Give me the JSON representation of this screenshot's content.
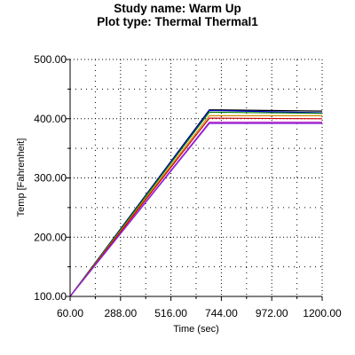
{
  "title_lines": [
    "Study name: Warm Up",
    "Plot type: Thermal Thermal1"
  ],
  "chart_data": {
    "type": "line",
    "title": "Study name: Warm Up\nPlot type: Thermal Thermal1",
    "xlabel": "Time (sec)",
    "ylabel": "Temp [Fahrenheit]",
    "xlim": [
      60,
      1200
    ],
    "ylim": [
      100,
      500
    ],
    "xticks": [
      60,
      288,
      516,
      744,
      972,
      1200
    ],
    "yticks": [
      100,
      200,
      300,
      400,
      500
    ],
    "xtick_labels": [
      "60.00",
      "288.00",
      "516.00",
      "744.00",
      "972.00",
      "1200.00"
    ],
    "ytick_labels": [
      "100.00",
      "200.00",
      "300.00",
      "400.00",
      "500.00"
    ],
    "grid": true,
    "legend": "none",
    "series": [
      {
        "color": "#000000",
        "x": [
          60,
          690,
          1200
        ],
        "y": [
          100,
          415,
          413
        ]
      },
      {
        "color": "#0000cc",
        "x": [
          60,
          690,
          1200
        ],
        "y": [
          100,
          414,
          410
        ]
      },
      {
        "color": "#008000",
        "x": [
          60,
          690,
          1200
        ],
        "y": [
          100,
          411,
          409
        ]
      },
      {
        "color": "#cc8800",
        "x": [
          60,
          690,
          1200
        ],
        "y": [
          100,
          405,
          405
        ]
      },
      {
        "color": "#cc0000",
        "x": [
          60,
          690,
          1200
        ],
        "y": [
          100,
          401,
          400
        ]
      },
      {
        "color": "#b000b0",
        "x": [
          60,
          690,
          1200
        ],
        "y": [
          100,
          394,
          394
        ]
      },
      {
        "color": "#8a2be2",
        "x": [
          60,
          690,
          1200
        ],
        "y": [
          100,
          392,
          392
        ]
      }
    ]
  }
}
